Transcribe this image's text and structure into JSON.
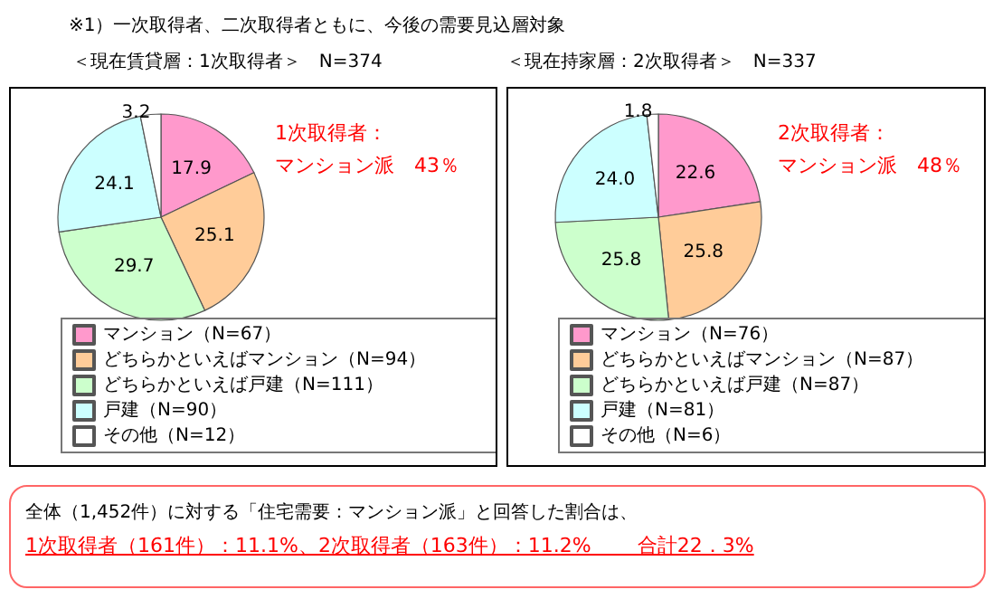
{
  "chart_data": [
    {
      "type": "pie",
      "title": "＜現在賃貸層：1次取得者＞　N=374",
      "categories": [
        "マンション（N=67）",
        "どちらかといえばマンション（N=94）",
        "どちらかといえば戸建（N=111）",
        "戸建（N=90）",
        "その他（N=12）"
      ],
      "values": [
        17.9,
        25.1,
        29.7,
        24.1,
        3.2
      ],
      "value_labels": [
        "17.9",
        "25.1",
        "29.7",
        "24.1",
        "3.2"
      ],
      "colors": [
        "#ff99cc",
        "#ffcc99",
        "#ccffcc",
        "#ccffff",
        "#ffffff"
      ],
      "legend": "bottom",
      "annotations": [
        "※1）一次取得者、二次取得者ともに、今後の需要見込層対象",
        "1次取得者：",
        "マンション派　43％"
      ]
    },
    {
      "type": "pie",
      "title": "＜現在持家層：2次取得者＞　N=337",
      "categories": [
        "マンション（N=76）",
        "どちらかといえばマンション（N=87）",
        "どちらかといえば戸建（N=87）",
        "戸建（N=81）",
        "その他（N=6）"
      ],
      "values": [
        22.6,
        25.8,
        25.8,
        24.0,
        1.8
      ],
      "value_labels": [
        "22.6",
        "25.8",
        "25.8",
        "24.0",
        "1.8"
      ],
      "colors": [
        "#ff99cc",
        "#ffcc99",
        "#ccffcc",
        "#ccffff",
        "#ffffff"
      ],
      "legend": "bottom",
      "annotations": [
        "2次取得者：",
        "マンション派　48％",
        "全体（1,452件）に対する「住宅需要：マンション派」と回答した割合は、",
        "1次取得者（161件）：11.1%、2次取得者（163件）：11.2%　　 合計22．3%"
      ]
    }
  ]
}
